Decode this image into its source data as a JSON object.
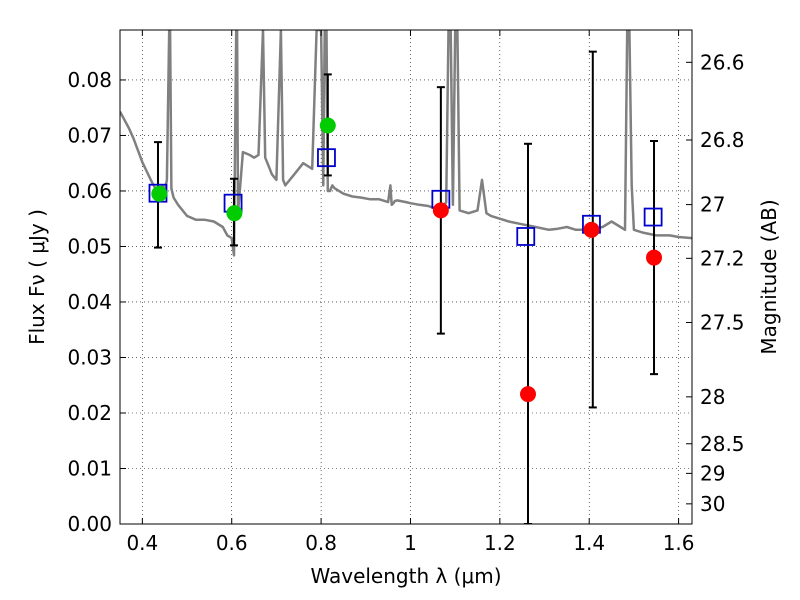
{
  "chart_data": {
    "type": "scatter",
    "xlabel": "Wavelength  λ (μm)",
    "ylabel": "Flux  Fν  ( μJy )",
    "y2label": "Magnitude (AB)",
    "xlim": [
      0.35,
      1.63
    ],
    "ylim": [
      0.0,
      0.089
    ],
    "grid": true,
    "colors": {
      "model": "#808080",
      "green_points": "#00cc00",
      "red_points": "#ff0000",
      "boxes": "#0000cc",
      "errorbars": "#000000"
    },
    "x_ticks": [
      {
        "value": 0.4,
        "label": "0.4"
      },
      {
        "value": 0.6,
        "label": "0.6"
      },
      {
        "value": 0.8,
        "label": "0.8"
      },
      {
        "value": 1.0,
        "label": "1"
      },
      {
        "value": 1.2,
        "label": "1.2"
      },
      {
        "value": 1.4,
        "label": "1.4"
      },
      {
        "value": 1.6,
        "label": "1.6"
      }
    ],
    "y_ticks": [
      {
        "value": 0.0,
        "label": "0.00"
      },
      {
        "value": 0.01,
        "label": "0.01"
      },
      {
        "value": 0.02,
        "label": "0.02"
      },
      {
        "value": 0.03,
        "label": "0.03"
      },
      {
        "value": 0.04,
        "label": "0.04"
      },
      {
        "value": 0.05,
        "label": "0.05"
      },
      {
        "value": 0.06,
        "label": "0.06"
      },
      {
        "value": 0.07,
        "label": "0.07"
      },
      {
        "value": 0.08,
        "label": "0.08"
      }
    ],
    "y2_ticks": [
      {
        "value": 26.6,
        "label": "26.6"
      },
      {
        "value": 26.8,
        "label": "26.8"
      },
      {
        "value": 27.0,
        "label": "27"
      },
      {
        "value": 27.2,
        "label": "27.2"
      },
      {
        "value": 27.5,
        "label": "27.5"
      },
      {
        "value": 28.0,
        "label": "28"
      },
      {
        "value": 28.5,
        "label": "28.5"
      },
      {
        "value": 29.0,
        "label": "29"
      },
      {
        "value": 30.0,
        "label": "30"
      }
    ],
    "model_spectrum": {
      "x": [
        0.35,
        0.37,
        0.38,
        0.4,
        0.41,
        0.42,
        0.43,
        0.435,
        0.44,
        0.445,
        0.45,
        0.455,
        0.46,
        0.462,
        0.465,
        0.47,
        0.48,
        0.5,
        0.52,
        0.54,
        0.56,
        0.58,
        0.59,
        0.6,
        0.605,
        0.61,
        0.612,
        0.614,
        0.618,
        0.625,
        0.64,
        0.65,
        0.66,
        0.67,
        0.675,
        0.68,
        0.69,
        0.7,
        0.71,
        0.715,
        0.72,
        0.74,
        0.76,
        0.78,
        0.79,
        0.8,
        0.805,
        0.808,
        0.812,
        0.815,
        0.82,
        0.825,
        0.83,
        0.85,
        0.87,
        0.89,
        0.91,
        0.93,
        0.95,
        0.955,
        0.958,
        0.962,
        0.965,
        0.97,
        0.99,
        1.0,
        1.02,
        1.04,
        1.05,
        1.07,
        1.08,
        1.085,
        1.09,
        1.095,
        1.1,
        1.105,
        1.11,
        1.13,
        1.15,
        1.16,
        1.17,
        1.18,
        1.2,
        1.22,
        1.25,
        1.28,
        1.31,
        1.33,
        1.35,
        1.37,
        1.4,
        1.43,
        1.45,
        1.47,
        1.48,
        1.485,
        1.49,
        1.495,
        1.5,
        1.52,
        1.55,
        1.58,
        1.6,
        1.63
      ],
      "y": [
        0.0743,
        0.0713,
        0.0695,
        0.0652,
        0.0635,
        0.0618,
        0.0603,
        0.0595,
        0.0597,
        0.061,
        0.06,
        0.062,
        0.089,
        0.089,
        0.0604,
        0.0588,
        0.0575,
        0.0555,
        0.0548,
        0.0548,
        0.0545,
        0.0535,
        0.052,
        0.0515,
        0.0484,
        0.089,
        0.089,
        0.056,
        0.06,
        0.067,
        0.0665,
        0.066,
        0.0665,
        0.089,
        0.066,
        0.065,
        0.063,
        0.062,
        0.089,
        0.062,
        0.061,
        0.063,
        0.065,
        0.064,
        0.089,
        0.089,
        0.061,
        0.089,
        0.089,
        0.06,
        0.06,
        0.061,
        0.0605,
        0.0595,
        0.059,
        0.0588,
        0.0585,
        0.0585,
        0.058,
        0.061,
        0.0575,
        0.0578,
        0.0582,
        0.0583,
        0.058,
        0.0578,
        0.0575,
        0.0573,
        0.057,
        0.0568,
        0.058,
        0.089,
        0.089,
        0.0575,
        0.089,
        0.089,
        0.0565,
        0.056,
        0.0565,
        0.062,
        0.056,
        0.0555,
        0.055,
        0.0545,
        0.054,
        0.0535,
        0.053,
        0.0532,
        0.0535,
        0.053,
        0.053,
        0.0535,
        0.0545,
        0.0535,
        0.053,
        0.089,
        0.089,
        0.061,
        0.053,
        0.0525,
        0.052,
        0.052,
        0.0517,
        0.0515
      ]
    },
    "error_bars": [
      {
        "x": 0.435,
        "low": 0.0498,
        "high": 0.0688
      },
      {
        "x": 0.605,
        "low": 0.0502,
        "high": 0.0622
      },
      {
        "x": 0.815,
        "low": 0.0628,
        "high": 0.081
      },
      {
        "x": 1.068,
        "low": 0.0343,
        "high": 0.0787
      },
      {
        "x": 1.263,
        "low": 0.0,
        "high": 0.0685
      },
      {
        "x": 1.408,
        "low": 0.021,
        "high": 0.0851
      },
      {
        "x": 1.545,
        "low": 0.027,
        "high": 0.069
      }
    ],
    "model_boxes": [
      {
        "x": 0.435,
        "y": 0.0596
      },
      {
        "x": 0.603,
        "y": 0.0578
      },
      {
        "x": 0.812,
        "y": 0.066
      },
      {
        "x": 1.068,
        "y": 0.0585
      },
      {
        "x": 1.258,
        "y": 0.0518
      },
      {
        "x": 1.405,
        "y": 0.054
      },
      {
        "x": 1.543,
        "y": 0.0553
      }
    ],
    "green_points": [
      {
        "x": 0.438,
        "y": 0.0595
      },
      {
        "x": 0.606,
        "y": 0.056
      },
      {
        "x": 0.815,
        "y": 0.0718
      }
    ],
    "red_points": [
      {
        "x": 1.068,
        "y": 0.0565
      },
      {
        "x": 1.263,
        "y": 0.0234
      },
      {
        "x": 1.405,
        "y": 0.053
      },
      {
        "x": 1.545,
        "y": 0.048
      }
    ]
  }
}
